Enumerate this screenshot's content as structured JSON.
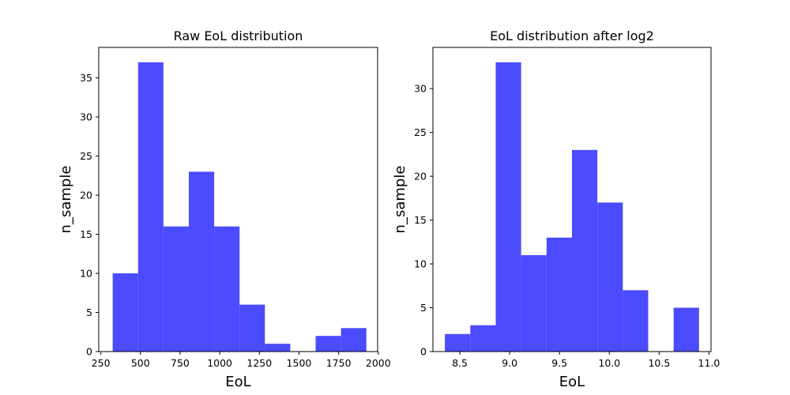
{
  "chart_data": [
    {
      "type": "bar",
      "title": "Raw EoL distribution",
      "xlabel": "EoL",
      "ylabel": "n_sample",
      "color": "#4b4bff",
      "xlim": [
        237,
        1996
      ],
      "ylim": [
        0,
        38.9
      ],
      "xticks": [
        250,
        500,
        750,
        1000,
        1250,
        1500,
        1750,
        2000
      ],
      "xtick_labels": [
        "250",
        "500",
        "750",
        "1000",
        "1250",
        "1500",
        "1750",
        "2000"
      ],
      "yticks": [
        0,
        5,
        10,
        15,
        20,
        25,
        30,
        35
      ],
      "ytick_labels": [
        "0",
        "5",
        "10",
        "15",
        "20",
        "25",
        "30",
        "35"
      ],
      "bin_edges": [
        325,
        485,
        645,
        805,
        965,
        1125,
        1285,
        1445,
        1605,
        1765,
        1925
      ],
      "values": [
        10,
        37,
        16,
        23,
        16,
        6,
        1,
        0,
        2,
        3
      ]
    },
    {
      "type": "bar",
      "title": "EoL distribution after log2",
      "xlabel": "EoL",
      "ylabel": "n_sample",
      "color": "#4b4bff",
      "xlim": [
        8.23,
        11.02
      ],
      "ylim": [
        0,
        34.7
      ],
      "xticks": [
        8.5,
        9.0,
        9.5,
        10.0,
        10.5,
        11.0
      ],
      "xtick_labels": [
        "8.5",
        "9.0",
        "9.5",
        "10.0",
        "10.5",
        "11.0"
      ],
      "yticks": [
        0,
        5,
        10,
        15,
        20,
        25,
        30
      ],
      "ytick_labels": [
        "0",
        "5",
        "10",
        "15",
        "20",
        "25",
        "30"
      ],
      "bin_edges": [
        8.35,
        8.605,
        8.86,
        9.115,
        9.37,
        9.625,
        9.88,
        10.135,
        10.39,
        10.645,
        10.9
      ],
      "values": [
        2,
        3,
        33,
        11,
        13,
        23,
        17,
        7,
        0,
        5
      ]
    }
  ]
}
